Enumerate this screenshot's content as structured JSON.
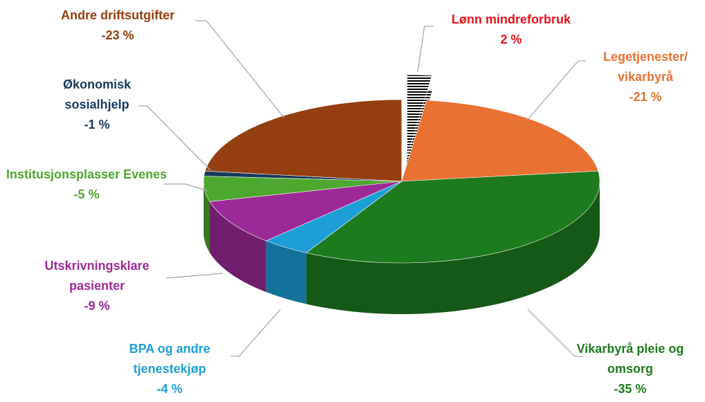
{
  "chart_data": {
    "type": "pie",
    "categories": [
      "Lønn mindreforbruk",
      "Legetjenester/ vikarbyrå",
      "Vikarbyrå pleie og omsorg",
      "BPA og andre tjenestekjøp",
      "Utskrivningsklare pasienter",
      "Institusjonsplasser Evenes",
      "Økonomisk sosialhjelp",
      "Andre driftsutgifter"
    ],
    "values": [
      2,
      -21,
      -35,
      -4,
      -9,
      -5,
      -1,
      -23
    ],
    "value_labels": [
      "2 %",
      "-21 %",
      "-35 %",
      "-4 %",
      "-9 %",
      "-5 %",
      "-1 %",
      "-23 %"
    ],
    "colors": [
      "#000000",
      "#e97132",
      "#1e7a1e",
      "#1b9fd6",
      "#9c2a96",
      "#4ea72e",
      "#163a5c",
      "#953e0f"
    ],
    "label_colors": [
      "#e8111b",
      "#e97132",
      "#1e7a1e",
      "#1b9fd6",
      "#9c2a96",
      "#4ea72e",
      "#163a5c",
      "#953e0f"
    ],
    "explode": [
      0
    ],
    "hatch": [
      0
    ]
  }
}
